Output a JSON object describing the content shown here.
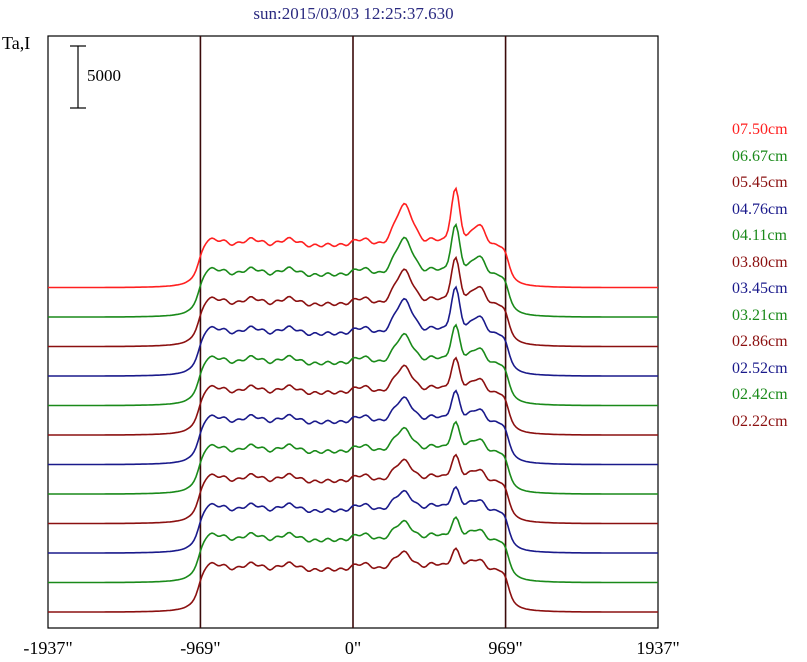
{
  "title": "sun:2015/03/03 12:25:37.630",
  "chart_data": {
    "type": "line",
    "ylabel": "Ta,I",
    "xlabel": "",
    "x_ticks": [
      -1937,
      -969,
      0,
      969,
      1937
    ],
    "x_tick_labels": [
      "-1937\"",
      "-969\"",
      "0\"",
      "969\"",
      "1937\""
    ],
    "xlim": [
      -1937,
      1937
    ],
    "vertical_lines": [
      -969,
      0,
      969
    ],
    "scale_bar": {
      "value": 5000,
      "label": "5000"
    },
    "series_colors": [
      "#8b1010",
      "#1a8a1a",
      "#1a1a8b",
      "#8b1010",
      "#1a8a1a",
      "#1a1a8b",
      "#8b1010",
      "#1a8a1a",
      "#1a1a8b",
      "#8b1010",
      "#1a8a1a",
      "#ff2020"
    ],
    "series": [
      {
        "name": "02.22cm",
        "color": "#8b1010",
        "offset": 0,
        "peak_scale": 0.55,
        "limb_scale": 0.95
      },
      {
        "name": "02.42cm",
        "color": "#1a8a1a",
        "offset": 1,
        "peak_scale": 0.6,
        "limb_scale": 0.95
      },
      {
        "name": "02.52cm",
        "color": "#1a1a8b",
        "offset": 2,
        "peak_scale": 0.62,
        "limb_scale": 0.95
      },
      {
        "name": "02.86cm",
        "color": "#8b1010",
        "offset": 3,
        "peak_scale": 0.7,
        "limb_scale": 0.95
      },
      {
        "name": "03.21cm",
        "color": "#1a8a1a",
        "offset": 4,
        "peak_scale": 0.8,
        "limb_scale": 0.95
      },
      {
        "name": "03.45cm",
        "color": "#1a1a8b",
        "offset": 5,
        "peak_scale": 0.85,
        "limb_scale": 0.95
      },
      {
        "name": "03.80cm",
        "color": "#8b1010",
        "offset": 6,
        "peak_scale": 0.95,
        "limb_scale": 0.95
      },
      {
        "name": "04.11cm",
        "color": "#1a8a1a",
        "offset": 7,
        "peak_scale": 1.05,
        "limb_scale": 0.95
      },
      {
        "name": "04.76cm",
        "color": "#1a1a8b",
        "offset": 8,
        "peak_scale": 1.3,
        "limb_scale": 0.95
      },
      {
        "name": "05.45cm",
        "color": "#8b1010",
        "offset": 9,
        "peak_scale": 1.3,
        "limb_scale": 0.95
      },
      {
        "name": "06.67cm",
        "color": "#1a8a1a",
        "offset": 10,
        "peak_scale": 1.4,
        "limb_scale": 0.95
      },
      {
        "name": "07.50cm",
        "color": "#ff2020",
        "offset": 11,
        "peak_scale": 1.6,
        "limb_scale": 0.95
      }
    ],
    "legend_position": "right"
  }
}
